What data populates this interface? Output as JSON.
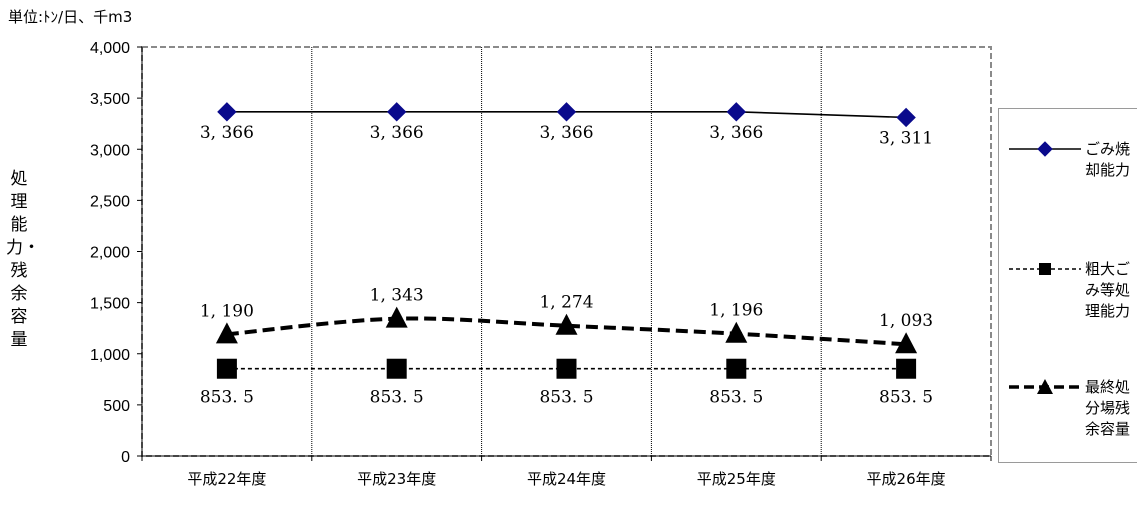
{
  "unit_label": "単位:ﾄﾝ/日、千m3",
  "chart_data": {
    "type": "line",
    "categories": [
      "平成22年度",
      "平成23年度",
      "平成24年度",
      "平成25年度",
      "平成26年度"
    ],
    "ylabel": "処理能力・残余容量",
    "ylim": [
      0,
      4000
    ],
    "yticks": [
      0,
      500,
      1000,
      1500,
      2000,
      2500,
      3000,
      3500,
      4000
    ],
    "ytick_labels": [
      "0",
      "500",
      "1,000",
      "1,500",
      "2,000",
      "2,500",
      "3,000",
      "3,500",
      "4,000"
    ],
    "grid": "vertical dotted lines between categories",
    "legend_position": "right",
    "series": [
      {
        "name": "ごみ焼却能力",
        "values": [
          3366,
          3366,
          3366,
          3366,
          3311
        ],
        "labels": [
          "3, 366",
          "3, 366",
          "3, 366",
          "3, 366",
          "3, 311"
        ],
        "marker": "diamond",
        "line_style": "solid",
        "color": "#000000",
        "marker_color": "#0a0a8c"
      },
      {
        "name": "粗大ごみ等処理能力",
        "values": [
          853.5,
          853.5,
          853.5,
          853.5,
          853.5
        ],
        "labels": [
          "853. 5",
          "853. 5",
          "853. 5",
          "853. 5",
          "853. 5"
        ],
        "marker": "square",
        "line_style": "dotted",
        "color": "#000000",
        "marker_color": "#000000"
      },
      {
        "name": "最終処分場残余容量",
        "values": [
          1190,
          1343,
          1274,
          1196,
          1093
        ],
        "labels": [
          "1, 190",
          "1, 343",
          "1, 274",
          "1, 196",
          "1, 093"
        ],
        "marker": "triangle",
        "line_style": "dashed-thick",
        "color": "#000000",
        "marker_color": "#000000"
      }
    ]
  }
}
